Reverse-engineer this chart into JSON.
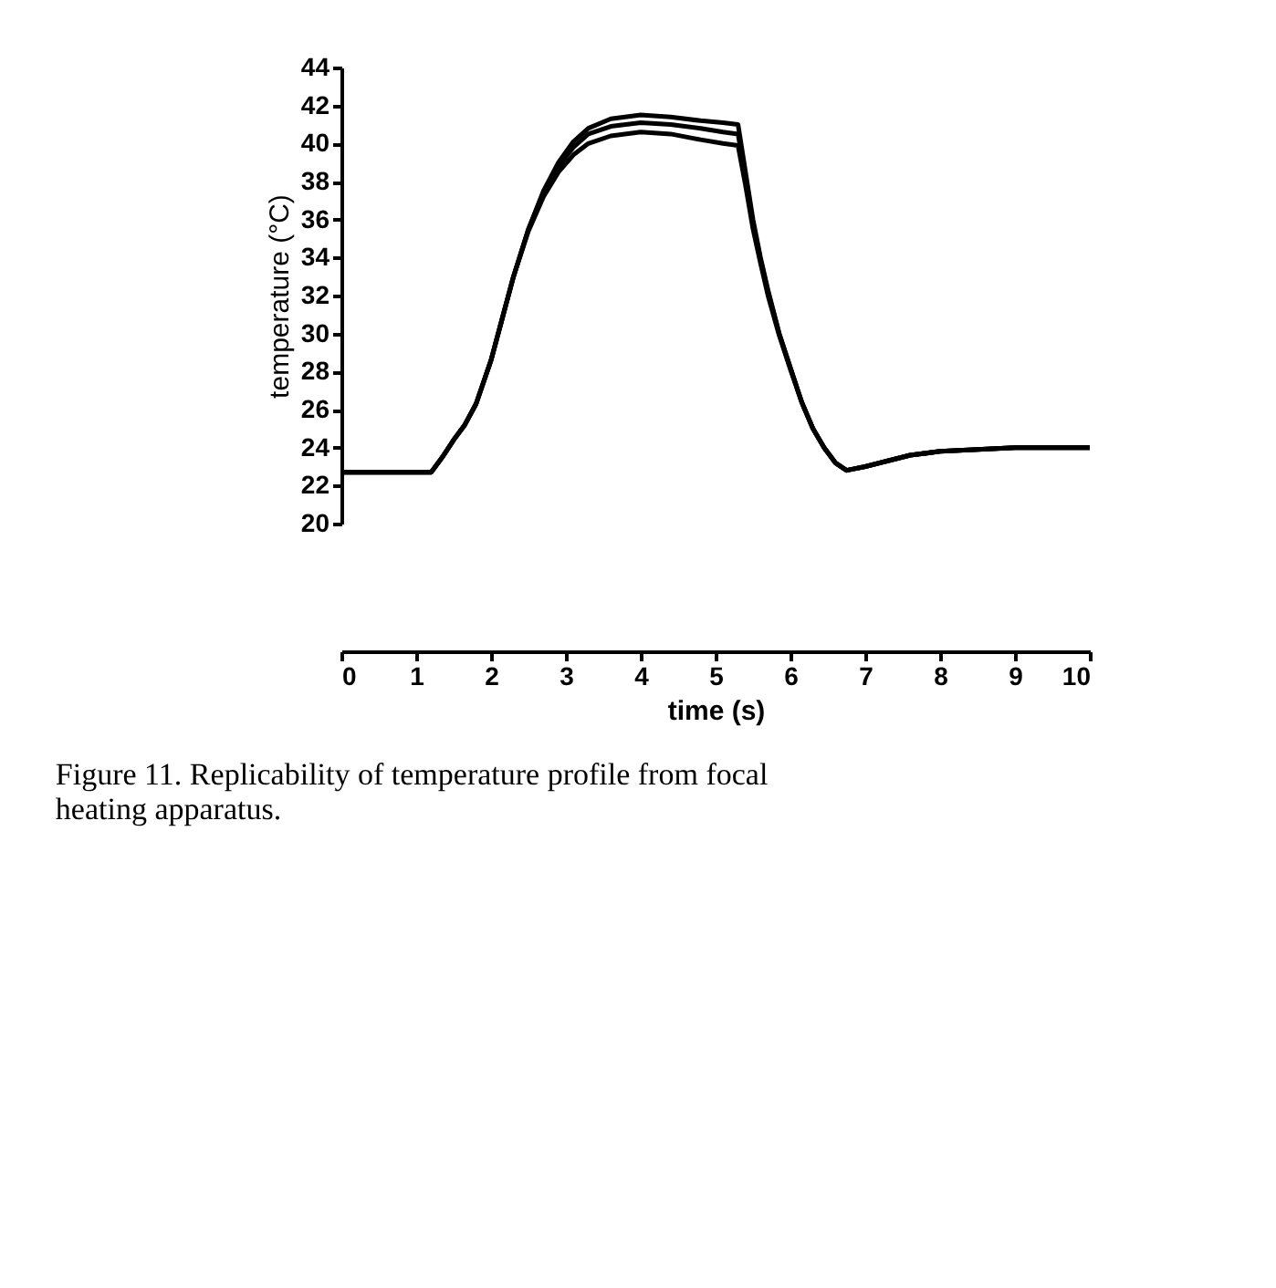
{
  "chart_data": {
    "type": "line",
    "xlabel": "time (s)",
    "ylabel": "temperature (°C)",
    "annotations": [
      "Figure 11.  Replicability of temperature profile from focal heating apparatus."
    ],
    "x": [
      0,
      0.5,
      1.0,
      1.2,
      1.35,
      1.5,
      1.65,
      1.8,
      2.0,
      2.15,
      2.3,
      2.5,
      2.7,
      2.9,
      3.1,
      3.3,
      3.6,
      4.0,
      4.4,
      4.8,
      5.1,
      5.3,
      5.4,
      5.5,
      5.6,
      5.7,
      5.85,
      6.0,
      6.15,
      6.3,
      6.45,
      6.6,
      6.75,
      7.0,
      7.3,
      7.6,
      8.0,
      8.5,
      9.0,
      9.5,
      10.0
    ],
    "series": [
      {
        "color": "#000000",
        "values": [
          22.7,
          22.7,
          22.7,
          22.7,
          23.5,
          24.4,
          25.2,
          26.3,
          28.6,
          30.8,
          33.0,
          35.5,
          37.5,
          39.0,
          40.1,
          40.8,
          41.3,
          41.5,
          41.4,
          41.2,
          41.1,
          41.0,
          38.5,
          36.0,
          34.0,
          32.3,
          30.0,
          28.2,
          26.4,
          25.0,
          24.0,
          23.2,
          22.8,
          23.0,
          23.3,
          23.6,
          23.8,
          23.9,
          24.0,
          24.0,
          24.0
        ]
      },
      {
        "color": "#000000",
        "values": [
          22.7,
          22.7,
          22.7,
          22.7,
          23.5,
          24.4,
          25.2,
          26.3,
          28.6,
          30.8,
          33.0,
          35.5,
          37.4,
          38.8,
          39.8,
          40.5,
          40.9,
          41.1,
          41.0,
          40.8,
          40.6,
          40.5,
          38.2,
          35.8,
          33.9,
          32.2,
          30.0,
          28.2,
          26.4,
          25.0,
          24.0,
          23.2,
          22.8,
          23.0,
          23.3,
          23.6,
          23.8,
          23.9,
          24.0,
          24.0,
          24.0
        ]
      },
      {
        "color": "#000000",
        "values": [
          22.7,
          22.7,
          22.7,
          22.7,
          23.5,
          24.4,
          25.2,
          26.3,
          28.6,
          30.8,
          33.0,
          35.4,
          37.2,
          38.5,
          39.4,
          40.0,
          40.4,
          40.6,
          40.5,
          40.2,
          40.0,
          39.9,
          37.8,
          35.5,
          33.7,
          32.0,
          29.9,
          28.1,
          26.4,
          25.0,
          24.0,
          23.2,
          22.8,
          23.0,
          23.3,
          23.6,
          23.8,
          23.9,
          24.0,
          24.0,
          24.0
        ]
      }
    ],
    "xlim": [
      0,
      10
    ],
    "xticks": [
      0,
      1,
      2,
      3,
      4,
      5,
      6,
      7,
      8,
      9,
      10
    ],
    "ylim": [
      20,
      44
    ],
    "yticks": [
      20,
      22,
      24,
      26,
      28,
      30,
      32,
      34,
      36,
      38,
      40,
      42,
      44
    ],
    "grid": false,
    "legend": false,
    "marker": "none",
    "line_style": "solid"
  }
}
